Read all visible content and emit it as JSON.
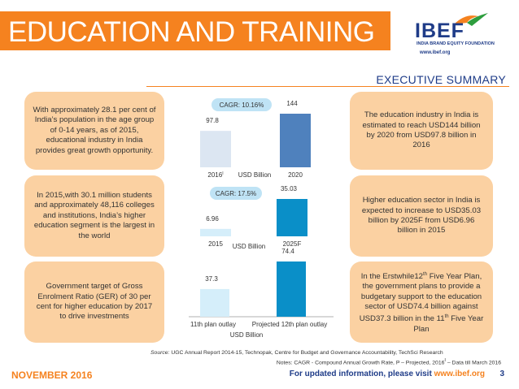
{
  "header": {
    "title": "EDUCATION AND TRAINING",
    "logo_brand": "IBEF",
    "logo_sub": "INDIA BRAND EQUITY FOUNDATION",
    "logo_url": "www.ibef.org"
  },
  "section_title": "EXECUTIVE SUMMARY",
  "left_boxes": [
    "With approximately 28.1 per cent of India’s population in the age group of 0-14 years, as of 2015, educational industry in India provides great growth opportunity.",
    "In 2015,with 30.1 million students and approximately 48,116 colleges and institutions, India’s higher education segment is the largest in the world",
    "Government target of Gross Enrolment Ratio (GER) of 30 per cent for higher education by 2017 to drive investments"
  ],
  "right_boxes": [
    "The education industry in India is estimated to reach USD144 billion by 2020 from USD97.8 billion in 2016",
    "Higher education sector in India is expected to increase to USD35.03 billion by 2025F from USD6.96 billion in 2015",
    {
      "pre": "In the Erstwhile12",
      "sup1": "th",
      "mid": " Five Year Plan, the government plans to provide a budgetary support to the education sector of USD74.4 billion against USD37.3 billion in the 11",
      "sup2": "th",
      "post": " Five Year Plan"
    }
  ],
  "chart_data": [
    {
      "type": "bar",
      "categories": [
        "2016",
        "2020"
      ],
      "category_superscripts": [
        "I",
        ""
      ],
      "values": [
        97.8,
        144
      ],
      "value_labels": [
        "97.8",
        "144"
      ],
      "colors": [
        "#dce6f2",
        "#4f81bd"
      ],
      "unit_label": "USD Billion",
      "annotation": "CAGR: 10.16%"
    },
    {
      "type": "bar",
      "categories": [
        "2015",
        "2025F"
      ],
      "values": [
        6.96,
        35.03
      ],
      "value_labels": [
        "6.96",
        "35.03"
      ],
      "colors": [
        "#d5eefa",
        "#0a8fc8"
      ],
      "unit_label": "USD Billion",
      "annotation": "CAGR: 17.5%"
    },
    {
      "type": "bar",
      "categories": [
        "11th plan outlay",
        "Projected 12th plan outlay"
      ],
      "values": [
        37.3,
        74.4
      ],
      "value_labels": [
        "37.3",
        "74.4"
      ],
      "colors": [
        "#d5eefa",
        "#0a8fc8"
      ],
      "unit_label": "USD Billion"
    }
  ],
  "footer": {
    "source_label": "Source:",
    "source_text": " UGC Annual Report 2014-15, Technopak, Centre for Budget and Governance Accountability, TechSci Research",
    "notes": "Notes: CAGR - Compound Annual Growth Rate, P – Projected, 2016",
    "notes_sup": "I",
    "notes_tail": " – Data till March 2016",
    "date": "NOVEMBER 2016",
    "visit_text": "For updated information, please visit ",
    "visit_url": "www.ibef.org",
    "page": "3"
  },
  "colors": {
    "accent_orange": "#f5821f",
    "brand_blue": "#1f3c88",
    "box_fill": "#fbd1a2",
    "cagr_bubble": "#bfe3f5"
  }
}
